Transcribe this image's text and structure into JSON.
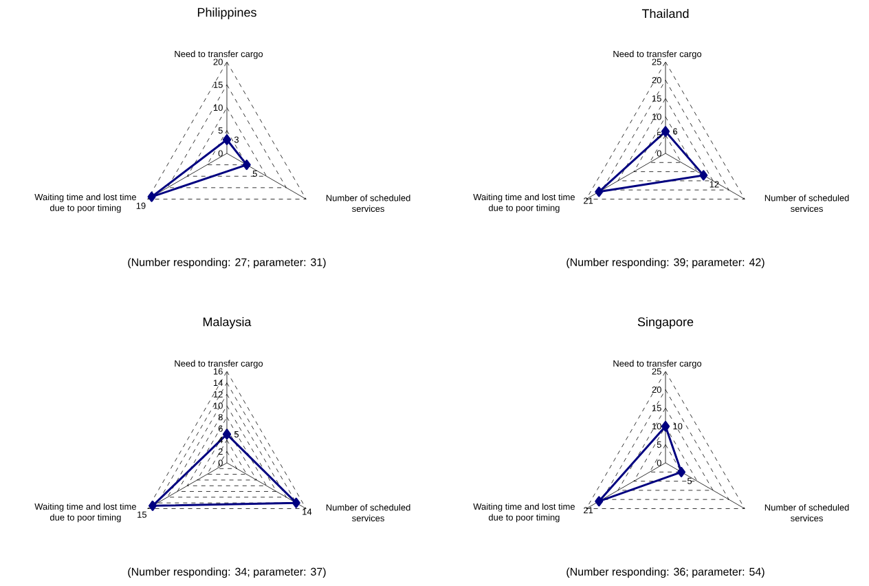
{
  "chart_data": [
    {
      "type": "radar",
      "title": "Philippines",
      "categories": [
        "Need to transfer cargo",
        "Number of scheduled services",
        "Waiting time and lost time due to poor timing"
      ],
      "series": [
        {
          "color": "#000080",
          "values": [
            3,
            5,
            19
          ]
        }
      ],
      "data_labels": true,
      "ylim": [
        0,
        20
      ],
      "yticks": [
        0,
        5,
        10,
        15,
        20
      ],
      "grid": true,
      "marker": "diamond",
      "line_style": "solid",
      "annotations": [
        "(Number responding: 27; parameter: 31)"
      ]
    },
    {
      "type": "radar",
      "title": "Thailand",
      "categories": [
        "Need to transfer cargo",
        "Number of scheduled services",
        "Waiting time and lost time due to poor timing"
      ],
      "series": [
        {
          "color": "#000080",
          "values": [
            6,
            12,
            21
          ]
        }
      ],
      "data_labels": true,
      "ylim": [
        0,
        25
      ],
      "yticks": [
        0,
        5,
        10,
        15,
        20,
        25
      ],
      "grid": true,
      "marker": "diamond",
      "line_style": "solid",
      "annotations": [
        "(Number responding: 39; parameter: 42)"
      ]
    },
    {
      "type": "radar",
      "title": "Malaysia",
      "categories": [
        "Need to transfer cargo",
        "Number of scheduled services",
        "Waiting time and lost time due to poor timing"
      ],
      "series": [
        {
          "color": "#000080",
          "values": [
            5,
            14,
            15
          ]
        }
      ],
      "data_labels": true,
      "ylim": [
        0,
        16
      ],
      "yticks": [
        0,
        2,
        4,
        6,
        8,
        10,
        12,
        14,
        16
      ],
      "grid": true,
      "marker": "diamond",
      "line_style": "solid",
      "annotations": [
        "(Number responding: 34; parameter: 37)"
      ]
    },
    {
      "type": "radar",
      "title": "Singapore",
      "categories": [
        "Need to transfer cargo",
        "Number of scheduled services",
        "Waiting time and lost time due to poor timing"
      ],
      "series": [
        {
          "color": "#000080",
          "values": [
            10,
            5,
            21
          ]
        }
      ],
      "data_labels": true,
      "ylim": [
        0,
        25
      ],
      "yticks": [
        0,
        5,
        10,
        15,
        20,
        25
      ],
      "grid": true,
      "marker": "diamond",
      "line_style": "solid",
      "annotations": [
        "(Number responding: 36; parameter: 54)"
      ]
    }
  ]
}
